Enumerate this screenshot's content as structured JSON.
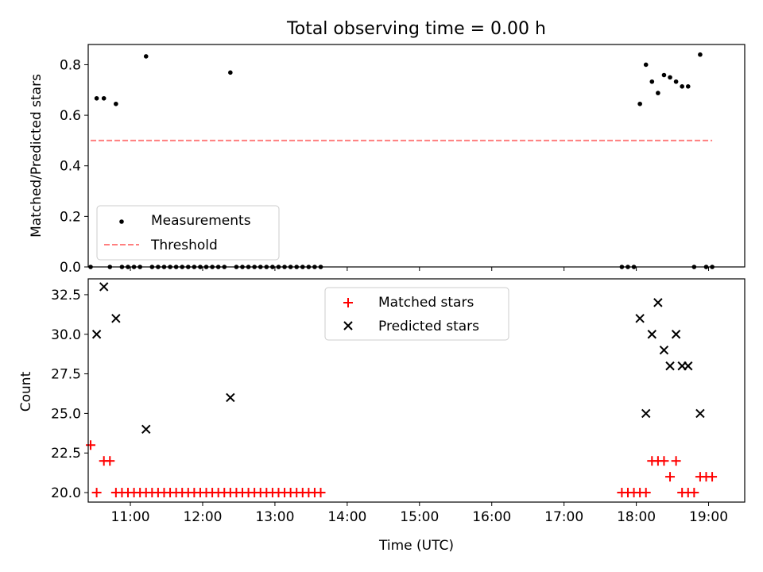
{
  "chart_data": [
    {
      "type": "scatter",
      "title": "Total observing time = 0.00 h",
      "xlabel": "",
      "ylabel": "Matched/Predicted stars",
      "xlim": [
        "10:25",
        "19:30"
      ],
      "ylim": [
        0,
        0.88
      ],
      "yticks": [
        "0.0",
        "0.2",
        "0.4",
        "0.6",
        "0.8"
      ],
      "legend_position": "lower-left",
      "grid": false,
      "series": [
        {
          "name": "Measurements",
          "color": "#000000",
          "marker": "dot",
          "points": [
            [
              "10:27",
              0.0
            ],
            [
              "10:32",
              0.667
            ],
            [
              "10:38",
              0.667
            ],
            [
              "10:43",
              0.0
            ],
            [
              "10:48",
              0.645
            ],
            [
              "10:53",
              0.0
            ],
            [
              "10:58",
              0.0
            ],
            [
              "11:03",
              0.0
            ],
            [
              "11:08",
              0.0
            ],
            [
              "11:13",
              0.833
            ],
            [
              "11:18",
              0.0
            ],
            [
              "11:23",
              0.0
            ],
            [
              "11:28",
              0.0
            ],
            [
              "11:33",
              0.0
            ],
            [
              "11:38",
              0.0
            ],
            [
              "11:43",
              0.0
            ],
            [
              "11:48",
              0.0
            ],
            [
              "11:53",
              0.0
            ],
            [
              "11:58",
              0.0
            ],
            [
              "12:03",
              0.0
            ],
            [
              "12:08",
              0.0
            ],
            [
              "12:13",
              0.0
            ],
            [
              "12:18",
              0.0
            ],
            [
              "12:23",
              0.769
            ],
            [
              "12:28",
              0.0
            ],
            [
              "12:33",
              0.0
            ],
            [
              "12:38",
              0.0
            ],
            [
              "12:43",
              0.0
            ],
            [
              "12:48",
              0.0
            ],
            [
              "12:53",
              0.0
            ],
            [
              "12:58",
              0.0
            ],
            [
              "13:03",
              0.0
            ],
            [
              "13:08",
              0.0
            ],
            [
              "13:13",
              0.0
            ],
            [
              "13:18",
              0.0
            ],
            [
              "13:23",
              0.0
            ],
            [
              "13:28",
              0.0
            ],
            [
              "13:33",
              0.0
            ],
            [
              "13:38",
              0.0
            ],
            [
              "17:48",
              0.0
            ],
            [
              "17:53",
              0.0
            ],
            [
              "17:58",
              0.0
            ],
            [
              "18:03",
              0.645
            ],
            [
              "18:08",
              0.8
            ],
            [
              "18:13",
              0.733
            ],
            [
              "18:18",
              0.688
            ],
            [
              "18:23",
              0.759
            ],
            [
              "18:28",
              0.75
            ],
            [
              "18:33",
              0.733
            ],
            [
              "18:38",
              0.714
            ],
            [
              "18:43",
              0.714
            ],
            [
              "18:48",
              0.0
            ],
            [
              "18:53",
              0.84
            ],
            [
              "18:58",
              0.0
            ],
            [
              "19:03",
              0.0
            ]
          ]
        },
        {
          "name": "Threshold",
          "color": "#ff7f7f",
          "style": "dashed",
          "points": [
            [
              "10:27",
              0.5
            ],
            [
              "19:03",
              0.5
            ]
          ]
        }
      ]
    },
    {
      "type": "scatter",
      "title": "",
      "xlabel": "Time (UTC)",
      "ylabel": "Count",
      "xlim": [
        "10:25",
        "19:30"
      ],
      "ylim": [
        19.4,
        33.5
      ],
      "xticks": [
        "11:00",
        "12:00",
        "13:00",
        "14:00",
        "15:00",
        "16:00",
        "17:00",
        "18:00",
        "19:00"
      ],
      "yticks": [
        "20.0",
        "22.5",
        "25.0",
        "27.5",
        "30.0",
        "32.5"
      ],
      "legend_position": "upper-center",
      "grid": false,
      "series": [
        {
          "name": "Matched stars",
          "color": "#ff0000",
          "marker": "plus",
          "points": [
            [
              "10:27",
              23
            ],
            [
              "10:32",
              20
            ],
            [
              "10:38",
              22
            ],
            [
              "10:43",
              22
            ],
            [
              "10:48",
              20
            ],
            [
              "10:53",
              20
            ],
            [
              "10:58",
              20
            ],
            [
              "11:03",
              20
            ],
            [
              "11:08",
              20
            ],
            [
              "11:13",
              20
            ],
            [
              "11:18",
              20
            ],
            [
              "11:23",
              20
            ],
            [
              "11:28",
              20
            ],
            [
              "11:33",
              20
            ],
            [
              "11:38",
              20
            ],
            [
              "11:43",
              20
            ],
            [
              "11:48",
              20
            ],
            [
              "11:53",
              20
            ],
            [
              "11:58",
              20
            ],
            [
              "12:03",
              20
            ],
            [
              "12:08",
              20
            ],
            [
              "12:13",
              20
            ],
            [
              "12:18",
              20
            ],
            [
              "12:23",
              20
            ],
            [
              "12:28",
              20
            ],
            [
              "12:33",
              20
            ],
            [
              "12:38",
              20
            ],
            [
              "12:43",
              20
            ],
            [
              "12:48",
              20
            ],
            [
              "12:53",
              20
            ],
            [
              "12:58",
              20
            ],
            [
              "13:03",
              20
            ],
            [
              "13:08",
              20
            ],
            [
              "13:13",
              20
            ],
            [
              "13:18",
              20
            ],
            [
              "13:23",
              20
            ],
            [
              "13:28",
              20
            ],
            [
              "13:33",
              20
            ],
            [
              "13:38",
              20
            ],
            [
              "17:48",
              20
            ],
            [
              "17:53",
              20
            ],
            [
              "17:58",
              20
            ],
            [
              "18:03",
              20
            ],
            [
              "18:08",
              20
            ],
            [
              "18:13",
              22
            ],
            [
              "18:18",
              22
            ],
            [
              "18:23",
              22
            ],
            [
              "18:28",
              21
            ],
            [
              "18:33",
              22
            ],
            [
              "18:38",
              20
            ],
            [
              "18:43",
              20
            ],
            [
              "18:48",
              20
            ],
            [
              "18:53",
              21
            ],
            [
              "18:58",
              21
            ],
            [
              "19:03",
              21
            ]
          ]
        },
        {
          "name": "Predicted stars",
          "color": "#000000",
          "marker": "x",
          "points": [
            [
              "10:32",
              30
            ],
            [
              "10:38",
              33
            ],
            [
              "10:48",
              31
            ],
            [
              "11:13",
              24
            ],
            [
              "12:23",
              26
            ],
            [
              "18:03",
              31
            ],
            [
              "18:08",
              25
            ],
            [
              "18:13",
              30
            ],
            [
              "18:18",
              32
            ],
            [
              "18:23",
              29
            ],
            [
              "18:28",
              28
            ],
            [
              "18:33",
              30
            ],
            [
              "18:38",
              28
            ],
            [
              "18:43",
              28
            ],
            [
              "18:53",
              25
            ]
          ]
        }
      ]
    }
  ]
}
